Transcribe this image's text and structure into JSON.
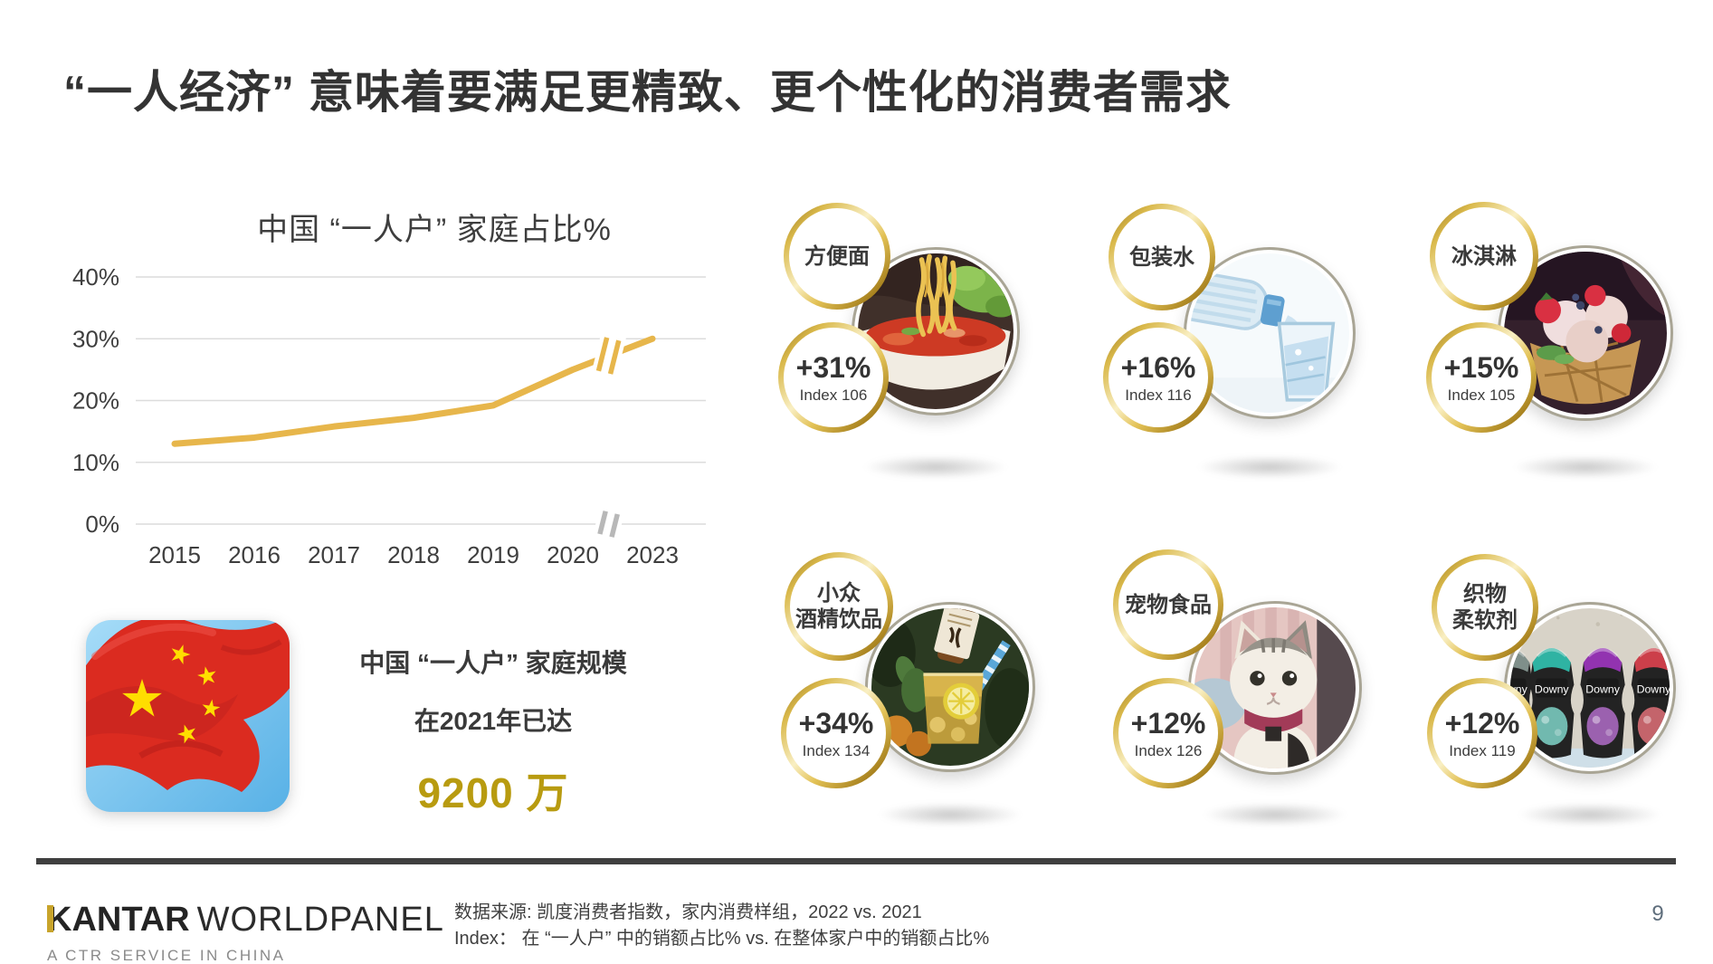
{
  "slide": {
    "title": "“一人经济” 意味着要满足更精致、更个性化的消费者需求",
    "page_number": "9"
  },
  "chart_data": {
    "type": "line",
    "title": "中国 “一人户” 家庭占比%",
    "x": [
      "2015",
      "2016",
      "2017",
      "2018",
      "2019",
      "2020",
      "2023"
    ],
    "series": [
      {
        "name": "中国“一人户”家庭占比%",
        "values": [
          13.0,
          14.0,
          15.8,
          17.2,
          19.2,
          25.0,
          30.0
        ]
      }
    ],
    "ylim": [
      0,
      40
    ],
    "ytick_values": [
      40,
      30,
      20,
      10,
      0
    ],
    "ytick_labels": [
      "40%",
      "30%",
      "20%",
      "10%",
      "0%"
    ],
    "grid": true,
    "legend": "none",
    "line_color": "#E7B64B",
    "axis_break": {
      "between": [
        "2020",
        "2023"
      ],
      "note": "axis break marks between 2020 and 2023"
    }
  },
  "highlight": {
    "line1": "中国 “一人户” 家庭规模",
    "line2": "在2021年已达",
    "value": "9200 万"
  },
  "categories": [
    {
      "name": "方便面",
      "growth": "+31%",
      "index": "Index 106",
      "photo": "instant-noodles"
    },
    {
      "name": "包装水",
      "growth": "+16%",
      "index": "Index 116",
      "photo": "bottled-water"
    },
    {
      "name": "冰淇淋",
      "growth": "+15%",
      "index": "Index 105",
      "photo": "ice-cream"
    },
    {
      "name": "小众\n酒精饮品",
      "growth": "+34%",
      "index": "Index 134",
      "photo": "niche-alcohol"
    },
    {
      "name": "宠物食品",
      "growth": "+12%",
      "index": "Index 126",
      "photo": "pet-food"
    },
    {
      "name": "织物\n柔软剂",
      "growth": "+12%",
      "index": "Index 119",
      "photo": "fabric-softener"
    }
  ],
  "footer": {
    "logo_kantar": "KANTAR",
    "logo_worldpanel": "WORLDPANEL",
    "logo_sub": "A CTR SERVICE IN CHINA",
    "source_line1": "数据来源: 凯度消费者指数，家内消费样组，2022 vs. 2021",
    "source_line2": "Index：  在 “一人户” 中的销额占比% vs. 在整体家户中的销额占比%"
  },
  "colors": {
    "accent_gold_line": "#E7B64B",
    "accent_gold_value": "#B89B10",
    "ring_gold_dark": "#8f6f1c",
    "ring_gold_light": "#f9efc4",
    "footer_bar": "#3F3F3F",
    "kantar_gold": "#C8A42B"
  }
}
